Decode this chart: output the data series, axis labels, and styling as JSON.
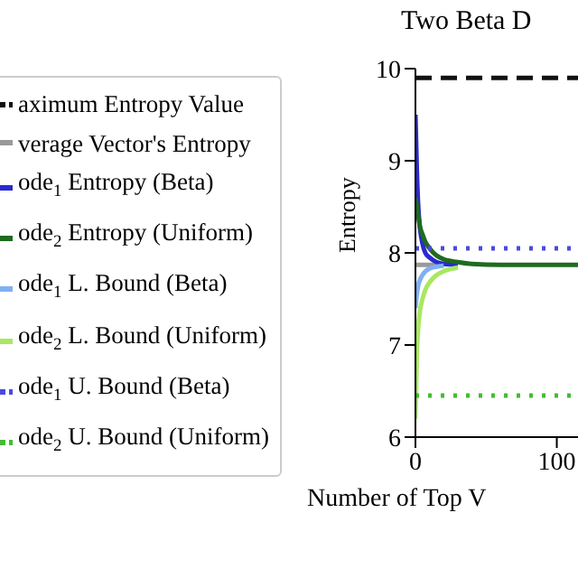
{
  "chart_data": {
    "type": "line",
    "title": "Two Beta D",
    "xlabel": "Number of Top V",
    "ylabel": "Entropy",
    "x": [
      0,
      1,
      2,
      3,
      5,
      7,
      10,
      15,
      20,
      30,
      40,
      60,
      80,
      115
    ],
    "series": [
      {
        "name": "aximum Entropy Value",
        "color": "#111111",
        "line_style": "dashed",
        "values": [
          9.9,
          9.9,
          9.9,
          9.9,
          9.9,
          9.9,
          9.9,
          9.9,
          9.9,
          9.9,
          9.9,
          9.9,
          9.9,
          9.9
        ]
      },
      {
        "name": "verage Vector's Entropy",
        "color": "#999999",
        "values": [
          7.87,
          7.87,
          7.87,
          7.87,
          7.87,
          7.87,
          7.87,
          7.87,
          7.87,
          null,
          null,
          null,
          null,
          null
        ]
      },
      {
        "name": "ode$_{1}$ Entropy (Beta)",
        "color": "#2a2ad0",
        "values": [
          9.5,
          8.9,
          8.5,
          8.3,
          8.1,
          8.0,
          7.95,
          7.9,
          7.88,
          7.87,
          null,
          null,
          null,
          null
        ]
      },
      {
        "name": "ode$_{2}$ Entropy (Uniform)",
        "color": "#1f6b1f",
        "values": [
          8.6,
          8.5,
          8.4,
          8.3,
          8.2,
          8.12,
          8.05,
          7.97,
          7.93,
          7.9,
          7.88,
          7.87,
          7.87,
          7.87
        ]
      },
      {
        "name": "ode$_{1}$ L. Bound (Beta)",
        "color": "#7fb0f0",
        "values": [
          7.4,
          7.55,
          7.65,
          7.7,
          7.76,
          7.8,
          7.83,
          7.85,
          7.86,
          null,
          null,
          null,
          null,
          null
        ]
      },
      {
        "name": "ode$_{2}$ L. Bound (Uniform)",
        "color": "#a8e860",
        "values": [
          6.2,
          6.9,
          7.2,
          7.35,
          7.5,
          7.6,
          7.68,
          7.76,
          7.8,
          7.84,
          null,
          null,
          null,
          null
        ]
      },
      {
        "name": "ode$_{1}$ U. Bound (Beta)",
        "color": "#4a4ae0",
        "line_style": "dotted",
        "values": [
          8.05,
          8.05,
          8.05,
          8.05,
          8.05,
          8.05,
          8.05,
          8.05,
          8.05,
          8.05,
          8.05,
          8.05,
          8.05,
          8.05
        ]
      },
      {
        "name": "ode$_{2}$ U. Bound (Uniform)",
        "color": "#44bb33",
        "line_style": "dotted",
        "values": [
          6.45,
          6.45,
          6.45,
          6.45,
          6.45,
          6.45,
          6.45,
          6.45,
          6.45,
          6.45,
          6.45,
          6.45,
          6.45,
          6.45
        ]
      }
    ],
    "xlim": [
      0,
      115
    ],
    "xticks": [
      0,
      100
    ],
    "ylim": [
      6,
      10
    ],
    "yticks": [
      6,
      7,
      8,
      9,
      10
    ],
    "grid": false,
    "legend": "left",
    "marker": "none"
  }
}
